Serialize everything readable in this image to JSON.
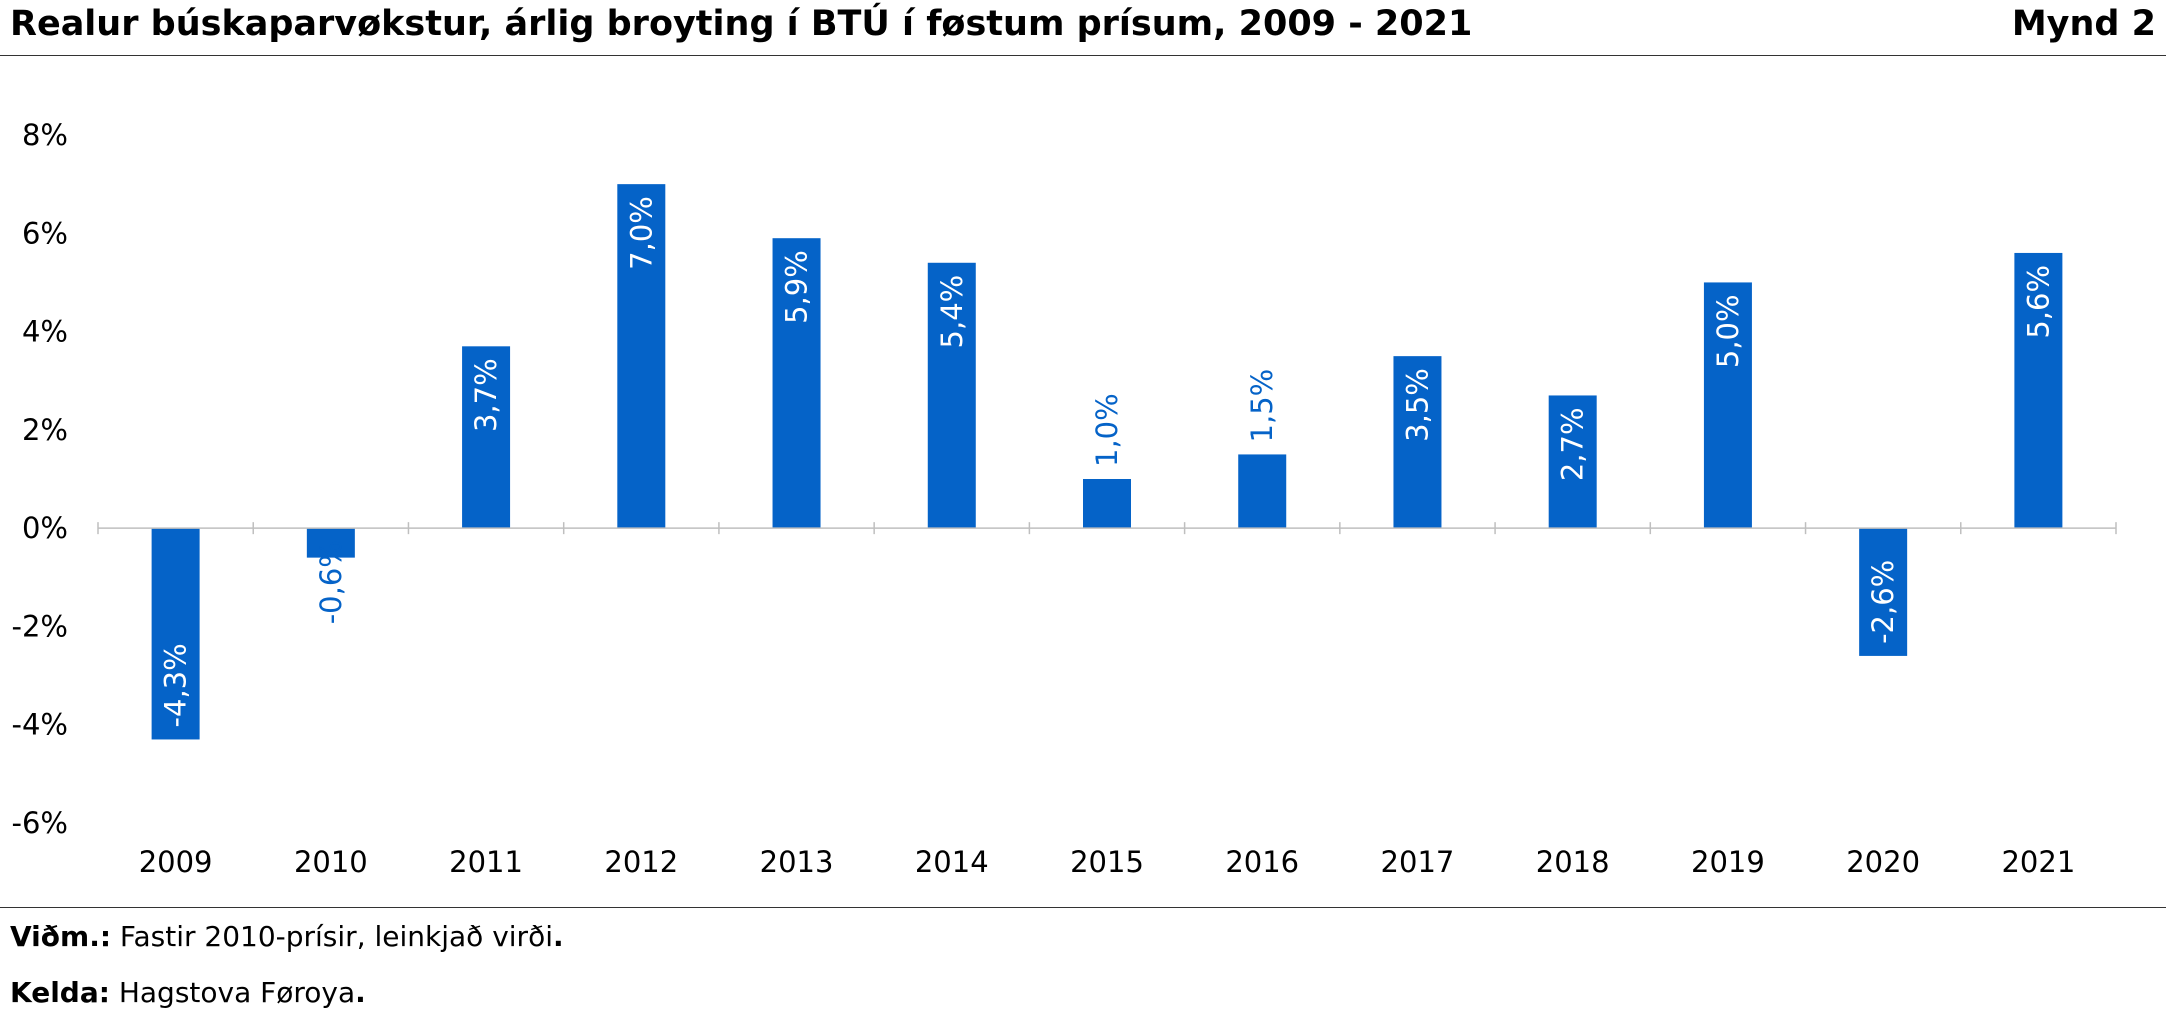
{
  "header": {
    "title": "Realur búskaparvøkstur, árlig broyting í BTÚ í føstum prísum, 2009 - 2021",
    "figure_label": "Mynd 2"
  },
  "footer": {
    "note_label": "Viðm.:",
    "note_text": " Fastir 2010-prísir, leinkjað virði",
    "source_label": "Kelda:",
    "source_text": " Hagstova Føroya",
    "end_mark": "."
  },
  "colors": {
    "bar": "#0563C8",
    "label_inside": "#ffffff",
    "label_outside": "#0563C8",
    "axis": "#bfbfbf"
  },
  "chart_data": {
    "type": "bar",
    "categories": [
      "2009",
      "2010",
      "2011",
      "2012",
      "2013",
      "2014",
      "2015",
      "2016",
      "2017",
      "2018",
      "2019",
      "2020",
      "2021"
    ],
    "values": [
      -4.3,
      -0.6,
      3.7,
      7.0,
      5.9,
      5.4,
      1.0,
      1.5,
      3.5,
      2.7,
      5.0,
      -2.6,
      5.6
    ],
    "data_labels": [
      "-4,3%",
      "-0,6%",
      "3,7%",
      "7,0%",
      "5,9%",
      "5,4%",
      "1,0%",
      "1,5%",
      "3,5%",
      "2,7%",
      "5,0%",
      "-2,6%",
      "5,6%"
    ],
    "y_ticks": [
      8,
      6,
      4,
      2,
      0,
      -2,
      -4,
      -6
    ],
    "y_tick_labels": [
      "8%",
      "6%",
      "4%",
      "2%",
      "0%",
      "-2%",
      "-4%",
      "-6%"
    ],
    "ylim": [
      -6,
      8
    ],
    "grid": false,
    "legend": "none"
  }
}
